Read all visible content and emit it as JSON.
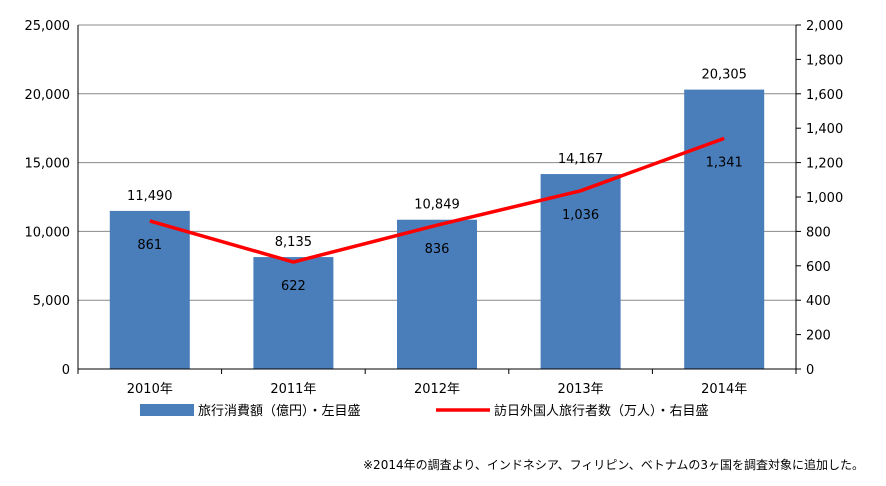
{
  "chart_data": {
    "type": "bar",
    "categories": [
      "2010年",
      "2011年",
      "2012年",
      "2013年",
      "2014年"
    ],
    "series": [
      {
        "name": "旅行消費額（億円）・左目盛",
        "type": "bar",
        "axis": "left",
        "color": "#4a7ebb",
        "values": [
          11490,
          8135,
          10849,
          14167,
          20305
        ],
        "value_labels": [
          "11,490",
          "8,135",
          "10,849",
          "14,167",
          "20,305"
        ],
        "label_colors": [
          "#000000",
          "#000000",
          "#000000",
          "#000000",
          "#ff0000"
        ]
      },
      {
        "name": "訪日外国人旅行者数（万人）・右目盛",
        "type": "line",
        "axis": "right",
        "color": "#ff0000",
        "values": [
          861,
          622,
          836,
          1036,
          1341
        ],
        "value_labels": [
          "861",
          "622",
          "836",
          "1,036",
          "1,341"
        ]
      }
    ],
    "left_axis": {
      "ylim": [
        0,
        25000
      ],
      "ticks": [
        "0",
        "5,000",
        "10,000",
        "15,000",
        "20,000",
        "25,000"
      ]
    },
    "right_axis": {
      "ylim": [
        0,
        2000
      ],
      "ticks": [
        "0",
        "200",
        "400",
        "600",
        "800",
        "1,000",
        "1,200",
        "1,400",
        "1,600",
        "1,800",
        "2,000"
      ]
    },
    "grid": true,
    "legend_position": "bottom",
    "note": "※2014年の調査より、インドネシア、フィリピン、ベトナムの3ヶ国を調査対象に追加した。"
  }
}
